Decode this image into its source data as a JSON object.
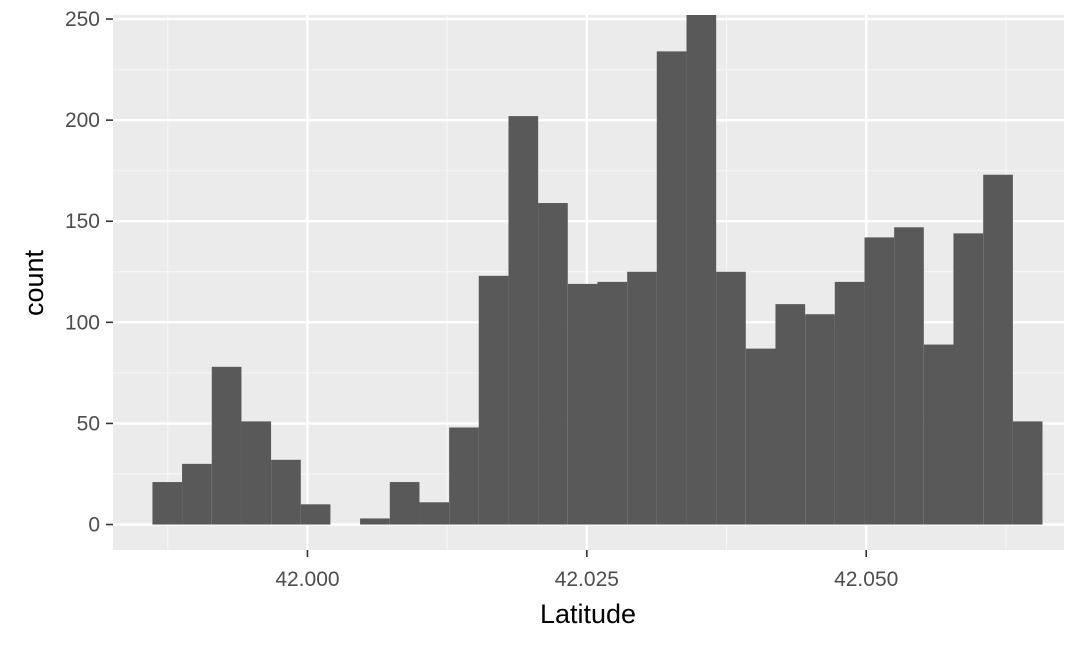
{
  "chart_data": {
    "type": "bar",
    "xlabel": "Latitude",
    "ylabel": "count",
    "xlim": [
      41.9826,
      42.0677
    ],
    "ylim": [
      -12.6,
      252
    ],
    "x_ticks": [
      "42.000",
      "42.025",
      "42.050"
    ],
    "x_tick_values": [
      42.0,
      42.025,
      42.05
    ],
    "x_minor_ticks": [
      41.9875,
      42.0125,
      42.0375,
      42.0625
    ],
    "y_ticks": [
      "0",
      "50",
      "100",
      "150",
      "200",
      "250"
    ],
    "y_tick_values": [
      0,
      50,
      100,
      150,
      200,
      250
    ],
    "y_minor_ticks": [
      25,
      75,
      125,
      175,
      225
    ],
    "bin_width": 0.002655,
    "bins": [
      {
        "x_start": 41.98613,
        "count": 21
      },
      {
        "x_start": 41.98878,
        "count": 30
      },
      {
        "x_start": 41.99144,
        "count": 78
      },
      {
        "x_start": 41.99409,
        "count": 51
      },
      {
        "x_start": 41.99675,
        "count": 32
      },
      {
        "x_start": 41.9994,
        "count": 10
      },
      {
        "x_start": 42.00206,
        "count": 0
      },
      {
        "x_start": 42.00471,
        "count": 3
      },
      {
        "x_start": 42.00737,
        "count": 21
      },
      {
        "x_start": 42.01002,
        "count": 11
      },
      {
        "x_start": 42.01268,
        "count": 48
      },
      {
        "x_start": 42.01533,
        "count": 123
      },
      {
        "x_start": 42.01799,
        "count": 202
      },
      {
        "x_start": 42.02064,
        "count": 159
      },
      {
        "x_start": 42.0233,
        "count": 119
      },
      {
        "x_start": 42.02595,
        "count": 120
      },
      {
        "x_start": 42.02861,
        "count": 125
      },
      {
        "x_start": 42.03126,
        "count": 234
      },
      {
        "x_start": 42.03392,
        "count": 252
      },
      {
        "x_start": 42.03657,
        "count": 125
      },
      {
        "x_start": 42.03923,
        "count": 87
      },
      {
        "x_start": 42.04188,
        "count": 109
      },
      {
        "x_start": 42.04454,
        "count": 104
      },
      {
        "x_start": 42.04719,
        "count": 120
      },
      {
        "x_start": 42.04985,
        "count": 142
      },
      {
        "x_start": 42.0525,
        "count": 147
      },
      {
        "x_start": 42.05516,
        "count": 89
      },
      {
        "x_start": 42.05781,
        "count": 144
      },
      {
        "x_start": 42.06047,
        "count": 173
      },
      {
        "x_start": 42.06312,
        "count": 51
      }
    ],
    "colors": {
      "panel": "#ebebeb",
      "grid_major": "#ffffff",
      "grid_minor": "#f5f5f5",
      "bar": "#595959",
      "tick_mark": "#333333"
    },
    "grid": true,
    "legend": "none"
  }
}
